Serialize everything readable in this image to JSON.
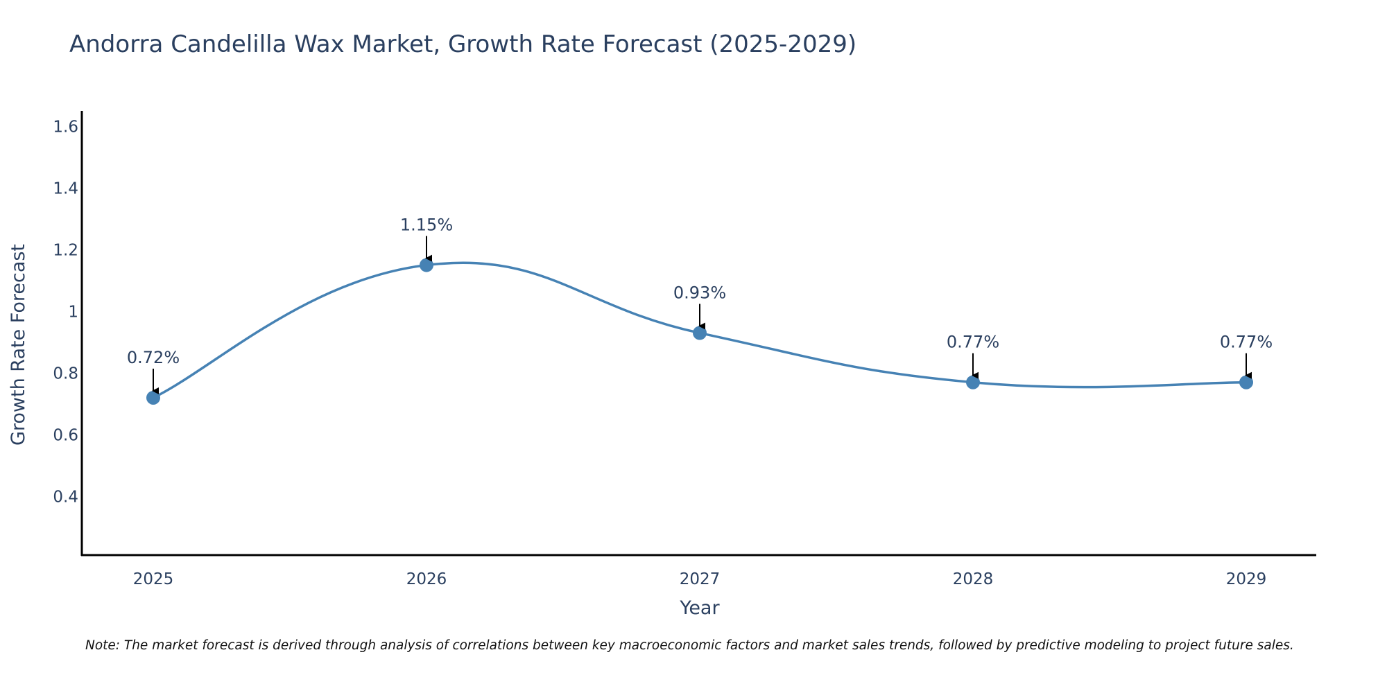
{
  "chart_data": {
    "type": "line",
    "title": "Andorra Candelilla Wax Market, Growth Rate Forecast (2025-2029)",
    "xlabel": "Year",
    "ylabel": "Growth Rate Forecast",
    "categories": [
      "2025",
      "2026",
      "2027",
      "2028",
      "2029"
    ],
    "series": [
      {
        "name": "Growth Rate Forecast",
        "values": [
          0.72,
          1.15,
          0.93,
          0.77,
          0.77
        ],
        "labels": [
          "0.72%",
          "1.15%",
          "0.93%",
          "0.77%",
          "0.77%"
        ]
      }
    ],
    "ylim": [
      0.21,
      1.65
    ],
    "yticks": [
      0.4,
      0.6,
      0.8,
      1,
      1.2,
      1.4,
      1.6
    ],
    "ytick_labels": [
      "0.4",
      "0.6",
      "0.8",
      "1",
      "1.2",
      "1.4",
      "1.6"
    ],
    "grid": false,
    "line_color": "#4682b4",
    "annotation_arrow_color": "#000000",
    "footnote": "Note: The market forecast is derived through analysis of correlations between key macroeconomic factors and market sales trends, followed by predictive modeling to project future sales."
  }
}
